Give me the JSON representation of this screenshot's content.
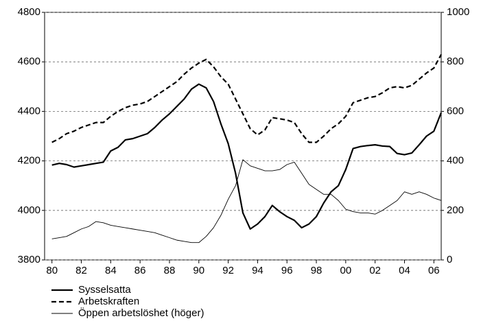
{
  "chart_data": {
    "type": "line",
    "x": [
      1980,
      1980.5,
      1981,
      1981.5,
      1982,
      1982.5,
      1983,
      1983.5,
      1984,
      1984.5,
      1985,
      1985.5,
      1986,
      1986.5,
      1987,
      1987.5,
      1988,
      1988.5,
      1989,
      1989.5,
      1990,
      1990.5,
      1991,
      1991.5,
      1992,
      1992.5,
      1993,
      1993.5,
      1994,
      1994.5,
      1995,
      1995.5,
      1996,
      1996.5,
      1997,
      1997.5,
      1998,
      1998.5,
      1999,
      1999.5,
      2000,
      2000.5,
      2001,
      2001.5,
      2002,
      2002.5,
      2003,
      2003.5,
      2004,
      2004.5,
      2005,
      2005.5,
      2006,
      2006.5
    ],
    "xlim": [
      1979.5,
      2006.5
    ],
    "xticks": [
      {
        "value": 1980,
        "label": "80"
      },
      {
        "value": 1982,
        "label": "82"
      },
      {
        "value": 1984,
        "label": "84"
      },
      {
        "value": 1986,
        "label": "86"
      },
      {
        "value": 1988,
        "label": "88"
      },
      {
        "value": 1990,
        "label": "90"
      },
      {
        "value": 1992,
        "label": "92"
      },
      {
        "value": 1994,
        "label": "94"
      },
      {
        "value": 1996,
        "label": "96"
      },
      {
        "value": 1998,
        "label": "98"
      },
      {
        "value": 2000,
        "label": "00"
      },
      {
        "value": 2002,
        "label": "02"
      },
      {
        "value": 2004,
        "label": "04"
      },
      {
        "value": 2006,
        "label": "06"
      }
    ],
    "ylim": [
      3800,
      4800
    ],
    "yticks": [
      3800,
      4000,
      4200,
      4400,
      4600,
      4800
    ],
    "y2lim": [
      0,
      1000
    ],
    "y2ticks": [
      0,
      200,
      400,
      600,
      800,
      1000
    ],
    "grid": true,
    "series": [
      {
        "name": "Sysselsatta",
        "color": "#000000",
        "width": 2.2,
        "dash": "none",
        "values": [
          4183,
          4190,
          4185,
          4175,
          4180,
          4185,
          4190,
          4195,
          4240,
          4255,
          4285,
          4290,
          4300,
          4310,
          4335,
          4365,
          4390,
          4420,
          4450,
          4490,
          4510,
          4495,
          4440,
          4350,
          4270,
          4150,
          3990,
          3925,
          3945,
          3975,
          4020,
          3995,
          3975,
          3960,
          3930,
          3945,
          3975,
          4030,
          4075,
          4100,
          4165,
          4250,
          4258,
          4262,
          4265,
          4260,
          4258,
          4230,
          4225,
          4232,
          4265,
          4300,
          4320,
          4395
        ]
      },
      {
        "name": "Arbetskraften",
        "color": "#000000",
        "width": 2.2,
        "dash": "7,4",
        "values": [
          4275,
          4290,
          4310,
          4320,
          4335,
          4345,
          4355,
          4355,
          4380,
          4400,
          4415,
          4425,
          4430,
          4440,
          4460,
          4480,
          4500,
          4520,
          4550,
          4575,
          4595,
          4610,
          4580,
          4540,
          4510,
          4450,
          4390,
          4330,
          4305,
          4325,
          4375,
          4370,
          4365,
          4355,
          4310,
          4275,
          4275,
          4300,
          4330,
          4350,
          4380,
          4435,
          4445,
          4455,
          4460,
          4475,
          4495,
          4500,
          4495,
          4505,
          4530,
          4555,
          4575,
          4630
        ]
      },
      {
        "name": "Öppen arbetslöshet (höger)",
        "color": "#000000",
        "width": 0.9,
        "dash": "none",
        "axis": "y2",
        "values": [
          85,
          90,
          95,
          110,
          125,
          135,
          155,
          150,
          140,
          135,
          130,
          125,
          120,
          115,
          110,
          100,
          90,
          80,
          75,
          70,
          70,
          95,
          130,
          180,
          245,
          300,
          405,
          380,
          370,
          360,
          360,
          365,
          385,
          395,
          350,
          305,
          285,
          265,
          265,
          240,
          205,
          195,
          190,
          190,
          185,
          200,
          220,
          240,
          275,
          265,
          275,
          265,
          250,
          240
        ]
      }
    ]
  }
}
